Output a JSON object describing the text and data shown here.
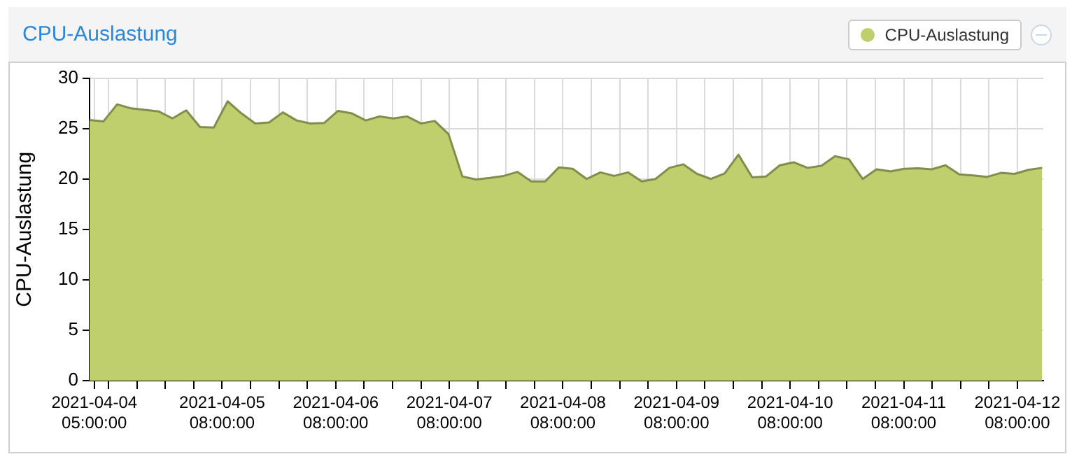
{
  "chart_data": {
    "type": "area",
    "title": "CPU-Auslastung",
    "ylabel": "CPU-Auslastung",
    "legend": "top right",
    "grid": true,
    "x": [
      "2021-04-04T04:00",
      "2021-04-04T06:55",
      "2021-04-04T09:50",
      "2021-04-04T12:45",
      "2021-04-04T15:40",
      "2021-04-04T18:35",
      "2021-04-04T21:30",
      "2021-04-05T00:25",
      "2021-04-05T03:20",
      "2021-04-05T06:15",
      "2021-04-05T09:10",
      "2021-04-05T12:05",
      "2021-04-05T15:00",
      "2021-04-05T17:55",
      "2021-04-05T20:50",
      "2021-04-05T23:45",
      "2021-04-06T02:40",
      "2021-04-06T05:35",
      "2021-04-06T08:30",
      "2021-04-06T11:25",
      "2021-04-06T14:20",
      "2021-04-06T17:15",
      "2021-04-06T20:10",
      "2021-04-06T23:05",
      "2021-04-07T02:00",
      "2021-04-07T04:55",
      "2021-04-07T07:50",
      "2021-04-07T10:45",
      "2021-04-07T13:40",
      "2021-04-07T16:35",
      "2021-04-07T19:30",
      "2021-04-07T22:25",
      "2021-04-08T01:20",
      "2021-04-08T04:15",
      "2021-04-08T07:10",
      "2021-04-08T10:05",
      "2021-04-08T13:00",
      "2021-04-08T15:55",
      "2021-04-08T18:50",
      "2021-04-08T21:45",
      "2021-04-09T00:40",
      "2021-04-09T03:35",
      "2021-04-09T06:30",
      "2021-04-09T09:25",
      "2021-04-09T12:20",
      "2021-04-09T15:15",
      "2021-04-09T18:10",
      "2021-04-09T21:05",
      "2021-04-10T00:00",
      "2021-04-10T02:55",
      "2021-04-10T05:50",
      "2021-04-10T08:45",
      "2021-04-10T11:40",
      "2021-04-10T14:35",
      "2021-04-10T17:30",
      "2021-04-10T20:25",
      "2021-04-10T23:20",
      "2021-04-11T02:15",
      "2021-04-11T05:10",
      "2021-04-11T08:05",
      "2021-04-11T11:00",
      "2021-04-11T13:55",
      "2021-04-11T16:50",
      "2021-04-11T19:45",
      "2021-04-11T22:40",
      "2021-04-12T01:35",
      "2021-04-12T04:30",
      "2021-04-12T07:25",
      "2021-04-12T10:20",
      "2021-04-12T13:15"
    ],
    "series": [
      {
        "name": "CPU-Auslastung",
        "color": "#bfcf6e",
        "values": [
          25.85,
          25.7,
          27.4,
          27.0,
          26.85,
          26.7,
          26.0,
          26.8,
          25.15,
          25.1,
          27.7,
          26.5,
          25.5,
          25.6,
          26.6,
          25.8,
          25.5,
          25.55,
          26.75,
          26.5,
          25.8,
          26.2,
          26.0,
          26.2,
          25.5,
          25.75,
          24.45,
          20.25,
          19.95,
          20.1,
          20.3,
          20.7,
          19.75,
          19.75,
          21.15,
          21.0,
          20.0,
          20.65,
          20.3,
          20.65,
          19.75,
          20.0,
          21.1,
          21.45,
          20.5,
          20.0,
          20.55,
          22.4,
          20.15,
          20.25,
          21.35,
          21.65,
          21.1,
          21.3,
          22.25,
          21.95,
          20.0,
          20.95,
          20.75,
          21.0,
          21.05,
          20.95,
          21.35,
          20.45,
          20.35,
          20.2,
          20.6,
          20.5,
          20.9,
          21.1
        ]
      }
    ],
    "xlim": [
      "2021-04-04T04:00",
      "2021-04-12T13:30"
    ],
    "xticks": [
      {
        "value": "2021-04-04T05:00",
        "label": "2021-04-04 05:00:00"
      },
      {
        "value": "2021-04-04T08:00",
        "label": null
      },
      {
        "value": "2021-04-04T14:00",
        "label": null
      },
      {
        "value": "2021-04-04T20:00",
        "label": null
      },
      {
        "value": "2021-04-05T02:00",
        "label": null
      },
      {
        "value": "2021-04-05T08:00",
        "label": "2021-04-05 08:00:00"
      },
      {
        "value": "2021-04-05T14:00",
        "label": null
      },
      {
        "value": "2021-04-05T20:00",
        "label": null
      },
      {
        "value": "2021-04-06T02:00",
        "label": null
      },
      {
        "value": "2021-04-06T08:00",
        "label": "2021-04-06 08:00:00"
      },
      {
        "value": "2021-04-06T14:00",
        "label": null
      },
      {
        "value": "2021-04-06T20:00",
        "label": null
      },
      {
        "value": "2021-04-07T02:00",
        "label": null
      },
      {
        "value": "2021-04-07T08:00",
        "label": "2021-04-07 08:00:00"
      },
      {
        "value": "2021-04-07T14:00",
        "label": null
      },
      {
        "value": "2021-04-07T20:00",
        "label": null
      },
      {
        "value": "2021-04-08T02:00",
        "label": null
      },
      {
        "value": "2021-04-08T08:00",
        "label": "2021-04-08 08:00:00"
      },
      {
        "value": "2021-04-08T14:00",
        "label": null
      },
      {
        "value": "2021-04-08T20:00",
        "label": null
      },
      {
        "value": "2021-04-09T02:00",
        "label": null
      },
      {
        "value": "2021-04-09T08:00",
        "label": "2021-04-09 08:00:00"
      },
      {
        "value": "2021-04-09T14:00",
        "label": null
      },
      {
        "value": "2021-04-09T20:00",
        "label": null
      },
      {
        "value": "2021-04-10T02:00",
        "label": null
      },
      {
        "value": "2021-04-10T08:00",
        "label": "2021-04-10 08:00:00"
      },
      {
        "value": "2021-04-10T14:00",
        "label": null
      },
      {
        "value": "2021-04-10T20:00",
        "label": null
      },
      {
        "value": "2021-04-11T02:00",
        "label": null
      },
      {
        "value": "2021-04-11T08:00",
        "label": "2021-04-11 08:00:00"
      },
      {
        "value": "2021-04-11T14:00",
        "label": null
      },
      {
        "value": "2021-04-11T20:00",
        "label": null
      },
      {
        "value": "2021-04-12T02:00",
        "label": null
      },
      {
        "value": "2021-04-12T08:00",
        "label": "2021-04-12 08:00:00"
      }
    ],
    "ylim": [
      0,
      30
    ],
    "yticks": [
      0,
      5,
      10,
      15,
      20,
      25,
      30
    ]
  }
}
